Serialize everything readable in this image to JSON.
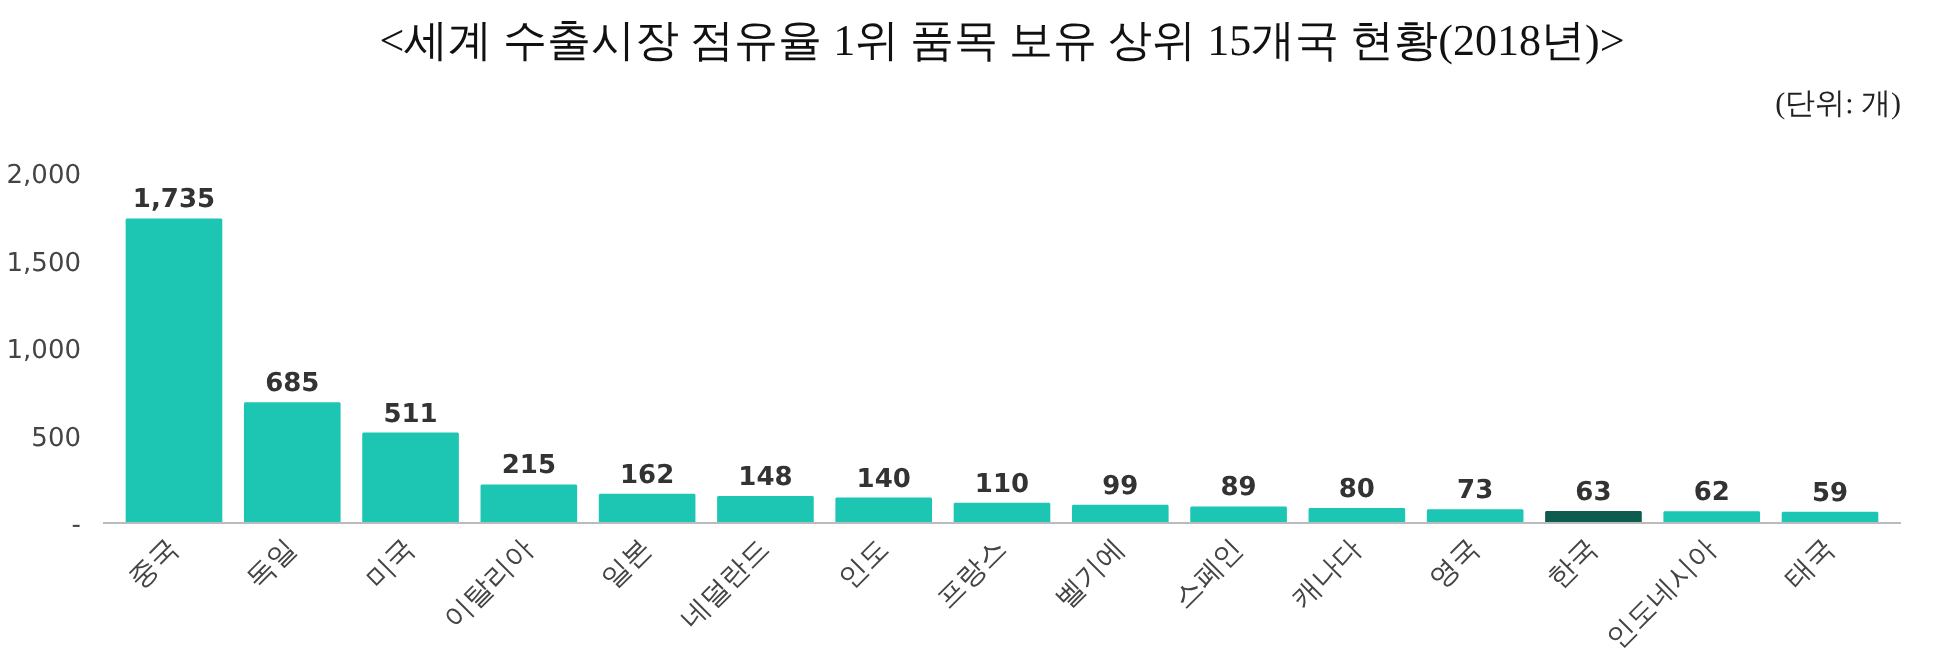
{
  "chart_data": {
    "type": "bar",
    "title": "<세계 수출시장 점유율 1위 품목 보유 상위 15개국 현황(2018년)>",
    "annotations": [
      "(단위: 개)"
    ],
    "categories": [
      "중국",
      "독일",
      "미국",
      "이탈리아",
      "일본",
      "네덜란드",
      "인도",
      "프랑스",
      "벨기에",
      "스페인",
      "캐나다",
      "영국",
      "한국",
      "인도네시아",
      "태국"
    ],
    "values": [
      1735,
      685,
      511,
      215,
      162,
      148,
      140,
      110,
      99,
      89,
      80,
      73,
      63,
      62,
      59
    ],
    "colors": [
      "#1dc6b3",
      "#1dc6b3",
      "#1dc6b3",
      "#1dc6b3",
      "#1dc6b3",
      "#1dc6b3",
      "#1dc6b3",
      "#1dc6b3",
      "#1dc6b3",
      "#1dc6b3",
      "#1dc6b3",
      "#1dc6b3",
      "#0d5c4e",
      "#1dc6b3",
      "#1dc6b3"
    ],
    "value_labels": [
      "1,735",
      "685",
      "511",
      "215",
      "162",
      "148",
      "140",
      "110",
      "99",
      "89",
      "80",
      "73",
      "63",
      "62",
      "59"
    ],
    "ylim": [
      0,
      2000
    ],
    "yticks": [
      {
        "value": 0,
        "label": "-"
      },
      {
        "value": 500,
        "label": "500"
      },
      {
        "value": 1000,
        "label": "1,000"
      },
      {
        "value": 1500,
        "label": "1,500"
      },
      {
        "value": 2000,
        "label": "2,000"
      }
    ],
    "grid": false
  }
}
